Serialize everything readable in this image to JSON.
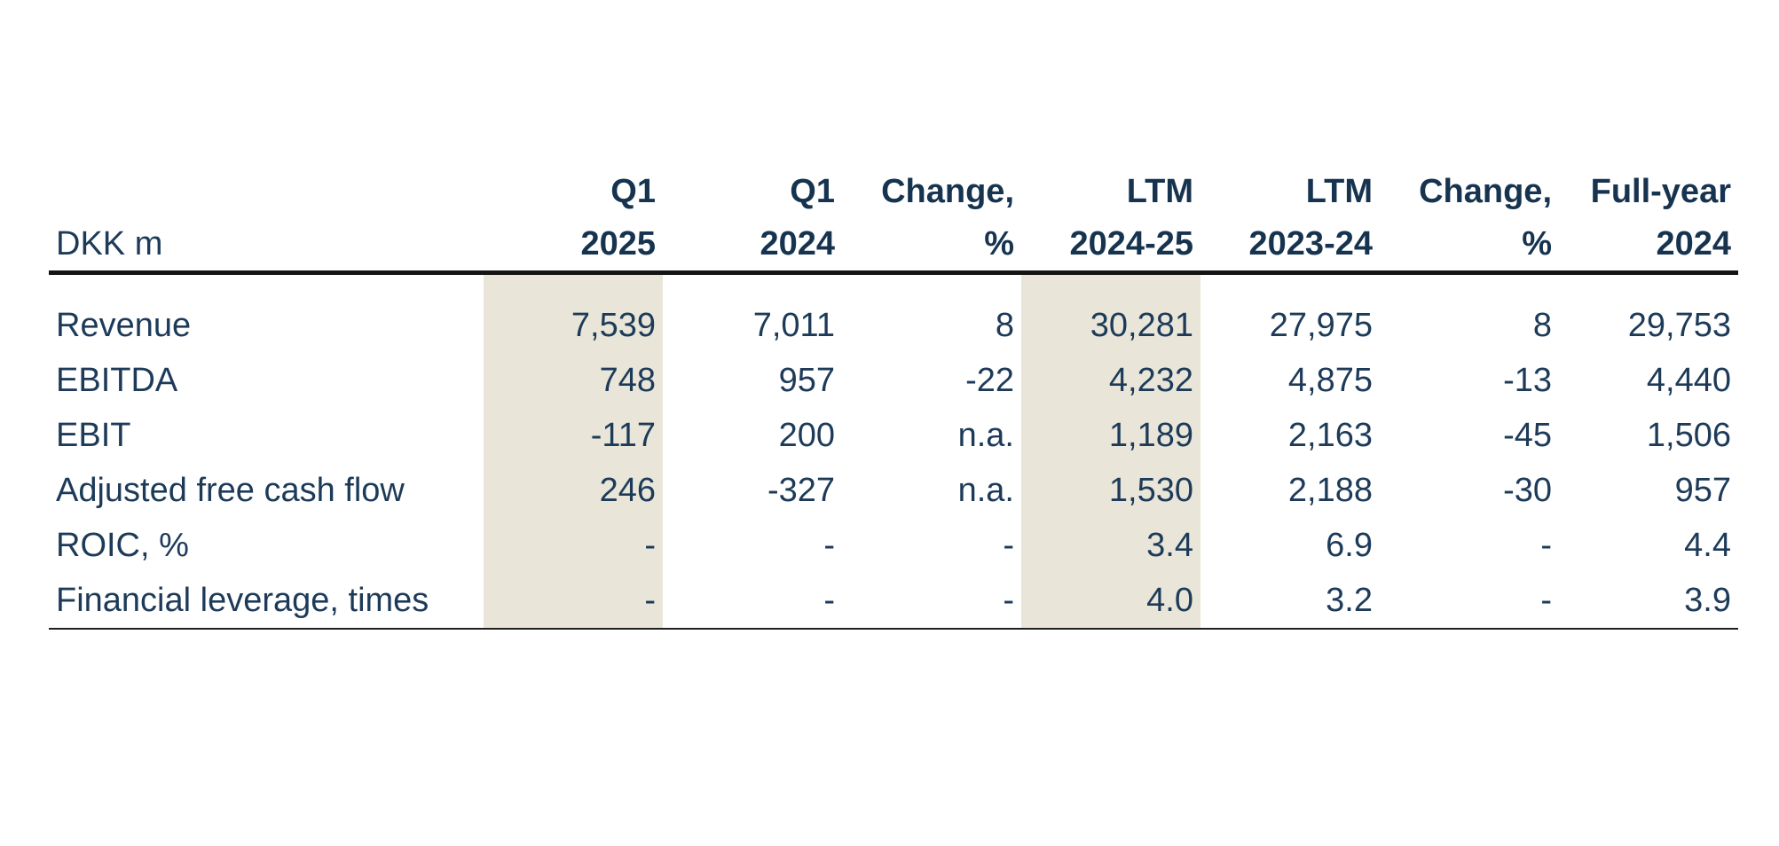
{
  "table": {
    "unit_label": "DKK m",
    "columns": [
      {
        "line1": "Q1",
        "line2": "2025",
        "highlight": true
      },
      {
        "line1": "Q1",
        "line2": "2024",
        "highlight": false
      },
      {
        "line1": "Change,",
        "line2": "%",
        "highlight": false
      },
      {
        "line1": "LTM",
        "line2": "2024-25",
        "highlight": true
      },
      {
        "line1": "LTM",
        "line2": "2023-24",
        "highlight": false
      },
      {
        "line1": "Change,",
        "line2": "%",
        "highlight": false
      },
      {
        "line1": "Full-year",
        "line2": "2024",
        "highlight": false
      }
    ],
    "rows": [
      {
        "label": "Revenue",
        "values": [
          "7,539",
          "7,011",
          "8",
          "30,281",
          "27,975",
          "8",
          "29,753"
        ]
      },
      {
        "label": "EBITDA",
        "values": [
          "748",
          "957",
          "-22",
          "4,232",
          "4,875",
          "-13",
          "4,440"
        ]
      },
      {
        "label": "EBIT",
        "values": [
          "-117",
          "200",
          "n.a.",
          "1,189",
          "2,163",
          "-45",
          "1,506"
        ]
      },
      {
        "label": "Adjusted free cash flow",
        "values": [
          "246",
          "-327",
          "n.a.",
          "1,530",
          "2,188",
          "-30",
          "957"
        ]
      },
      {
        "label": "ROIC, %",
        "values": [
          "-",
          "-",
          "-",
          "3.4",
          "6.9",
          "-",
          "4.4"
        ]
      },
      {
        "label": "Financial leverage, times",
        "values": [
          "-",
          "-",
          "-",
          "4.0",
          "3.2",
          "-",
          "3.9"
        ]
      }
    ]
  },
  "colors": {
    "text": "#1d3b59",
    "header_text": "#16334f",
    "highlight_column": "#e9e6d9",
    "header_rule": "#141414",
    "bottom_rule": "#1f1f1f",
    "background": "#ffffff"
  }
}
